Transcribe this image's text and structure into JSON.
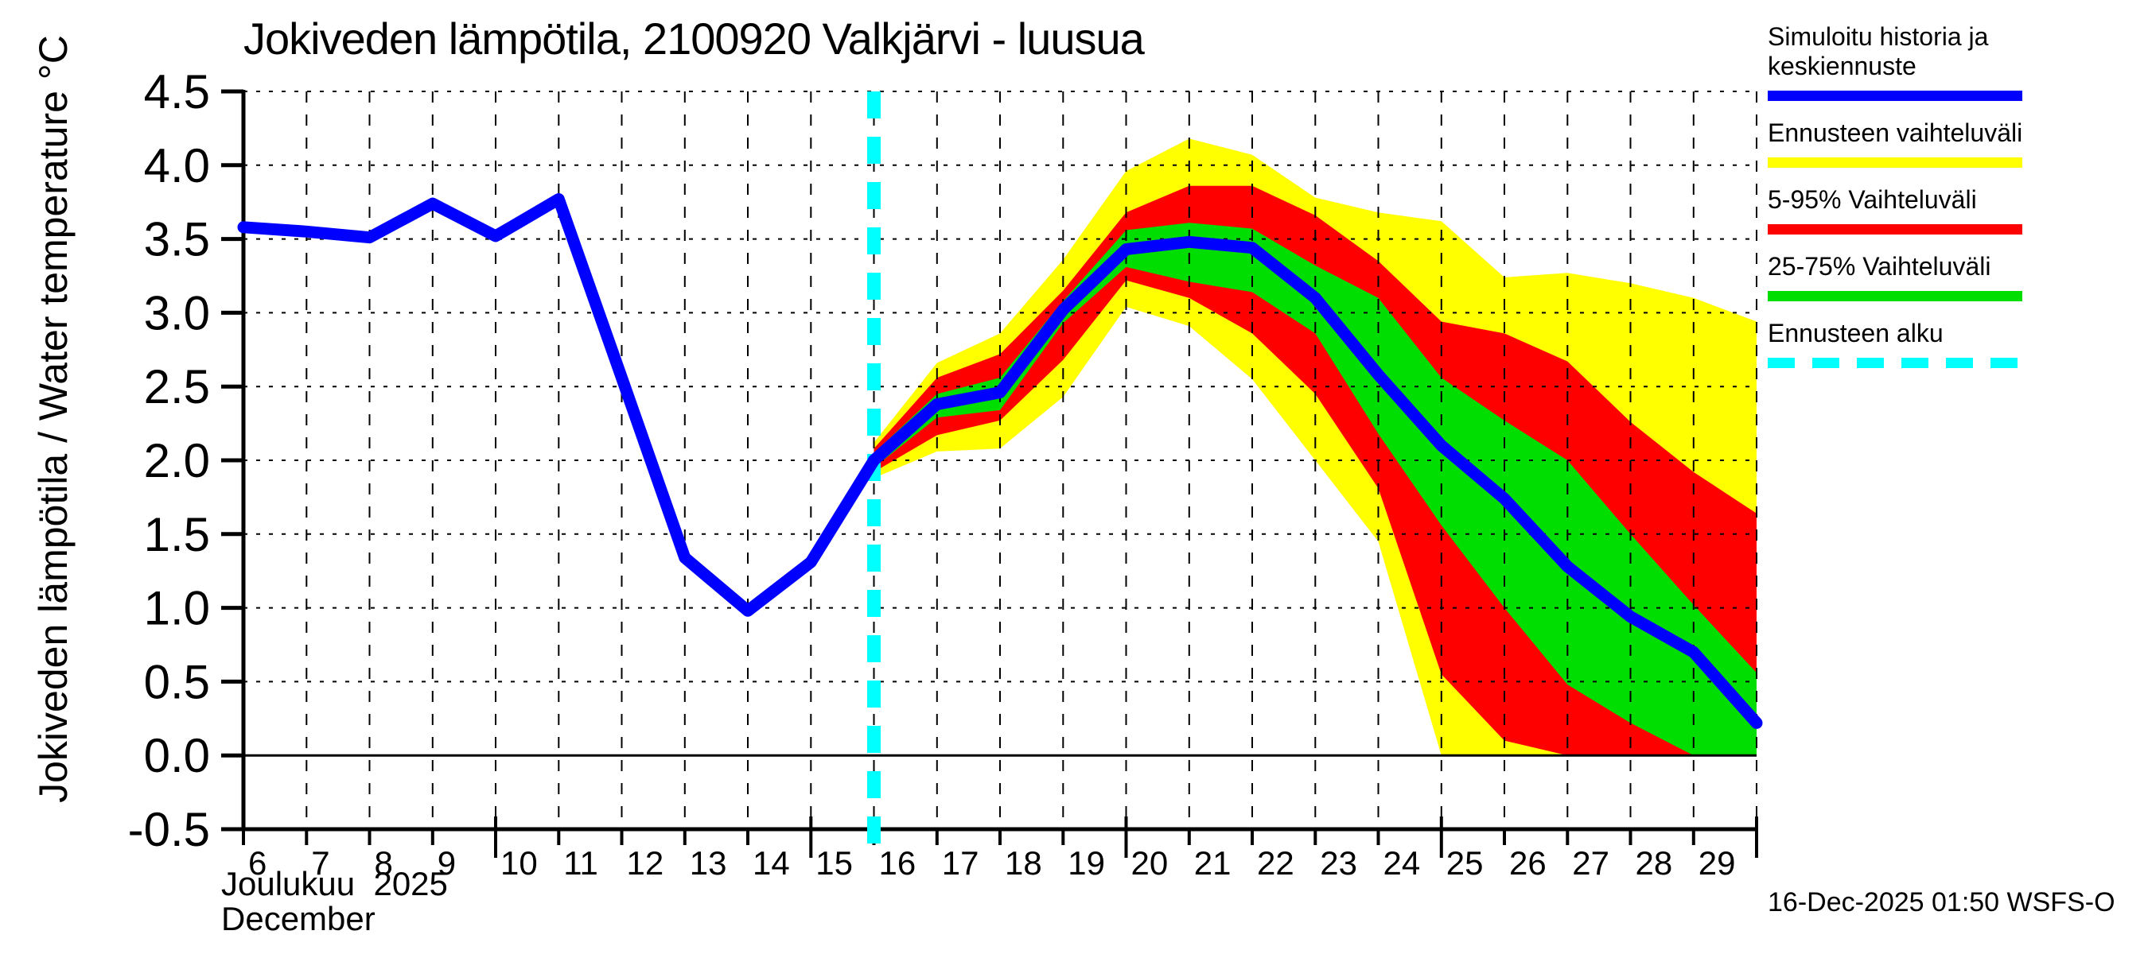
{
  "title": "Jokiveden lämpötila, 2100920 Valkjärvi - luusua",
  "footer": {
    "timestamp": "16-Dec-2025 01:50 WSFS-O"
  },
  "colors": {
    "median": "#0000ff",
    "full_range": "#ffff00",
    "p5_95": "#ff0000",
    "p25_75": "#00dd00",
    "forecast_start": "#00ffff",
    "grid": "#000000",
    "background": "#ffffff"
  },
  "legend": {
    "items": [
      {
        "label": "Simuloitu historia ja keskiennuste",
        "color": "#0000ff",
        "dash": false
      },
      {
        "label": "Ennusteen vaihteluväli",
        "color": "#ffff00",
        "dash": false
      },
      {
        "label": "5-95% Vaihteluväli",
        "color": "#ff0000",
        "dash": false
      },
      {
        "label": "25-75% Vaihteluväli",
        "color": "#00dd00",
        "dash": false
      },
      {
        "label": "Ennusteen alku",
        "color": "#00ffff",
        "dash": true
      }
    ]
  },
  "chart_data": {
    "type": "line",
    "title": "Jokiveden lämpötila, 2100920 Valkjärvi - luusua",
    "ylabel": "Jokiveden lämpötila / Water temperature   °C",
    "xlabel_fi": "Joulukuu  2025",
    "xlabel_en": "December",
    "ylim": [
      -0.5,
      4.5
    ],
    "y_ticks": [
      4.5,
      4.0,
      3.5,
      3.0,
      2.5,
      2.0,
      1.5,
      1.0,
      0.5,
      0.0,
      -0.5
    ],
    "x_day_first": 6,
    "x_day_last_tick": 30,
    "x_labeled_days": [
      6,
      7,
      8,
      9,
      10,
      11,
      12,
      13,
      14,
      15,
      16,
      17,
      18,
      19,
      20,
      21,
      22,
      23,
      24,
      25,
      26,
      27,
      28,
      29
    ],
    "forecast_start_day": 16,
    "zero_line": 0.0,
    "history": {
      "name": "Simuloitu historia ja keskiennuste",
      "days": [
        6,
        7,
        8,
        9,
        10,
        11,
        12,
        13,
        14,
        15,
        16
      ],
      "values": [
        3.58,
        3.55,
        3.51,
        3.74,
        3.52,
        3.77,
        2.56,
        1.34,
        0.98,
        1.31,
        2.0
      ]
    },
    "forecast": {
      "days": [
        16,
        17,
        18,
        19,
        20,
        21,
        22,
        23,
        24,
        25,
        26,
        27,
        28,
        29,
        30
      ],
      "median": [
        2.0,
        2.38,
        2.46,
        3.02,
        3.43,
        3.48,
        3.44,
        3.1,
        2.58,
        2.1,
        1.74,
        1.28,
        0.94,
        0.7,
        0.22
      ],
      "p25": [
        1.95,
        2.29,
        2.34,
        2.93,
        3.31,
        3.21,
        3.14,
        2.86,
        2.18,
        1.56,
        1.0,
        0.48,
        0.22,
        0.0,
        0.0
      ],
      "p75": [
        2.05,
        2.45,
        2.56,
        3.08,
        3.56,
        3.61,
        3.57,
        3.32,
        3.1,
        2.56,
        2.27,
        2.0,
        1.5,
        1.02,
        0.56
      ],
      "p5": [
        1.92,
        2.17,
        2.27,
        2.68,
        3.22,
        3.1,
        2.86,
        2.45,
        1.81,
        0.55,
        0.1,
        0.0,
        0.0,
        0.0,
        0.0
      ],
      "p95": [
        2.08,
        2.56,
        2.72,
        3.15,
        3.68,
        3.86,
        3.86,
        3.66,
        3.35,
        2.94,
        2.86,
        2.67,
        2.26,
        1.92,
        1.64
      ],
      "min": [
        1.88,
        2.06,
        2.08,
        2.43,
        3.04,
        2.91,
        2.55,
        2.0,
        1.45,
        0.0,
        0.0,
        0.0,
        0.0,
        0.0,
        0.0
      ],
      "max": [
        2.12,
        2.66,
        2.86,
        3.36,
        3.96,
        4.18,
        4.07,
        3.78,
        3.68,
        3.62,
        3.24,
        3.27,
        3.2,
        3.1,
        2.94
      ]
    }
  }
}
